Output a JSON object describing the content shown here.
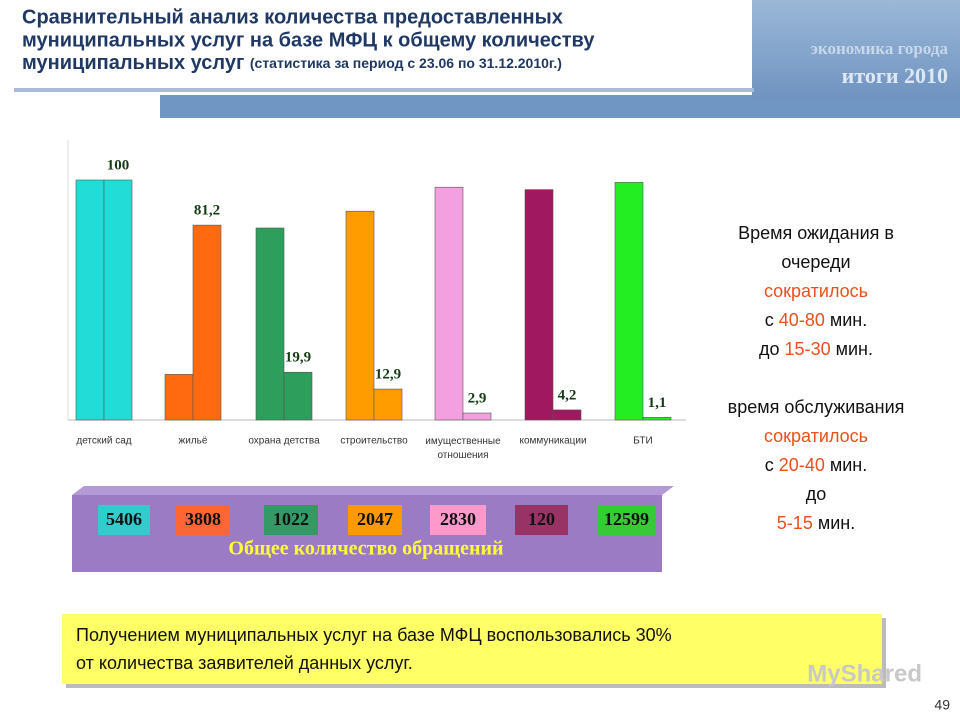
{
  "header": {
    "title": [
      "Сравнительный анализ количества предоставленных",
      "муниципальных услуг на базе МФЦ к общему количеству",
      "муниципальных услуг"
    ],
    "subtitle": "(статистика за период с 23.06 по 31.12.2010г.)",
    "logo": [
      "экономика города",
      "итоги 2010"
    ]
  },
  "chart_data": {
    "type": "bar",
    "categories": [
      "детский сад",
      "жильё",
      "охрана детства",
      "строительство",
      "имущественные отношения",
      "коммуникации",
      "БТИ"
    ],
    "colors": [
      "#22dcd8",
      "#ff6a10",
      "#2e9e5c",
      "#ff9c00",
      "#f4a0e0",
      "#a01860",
      "#22ee22"
    ],
    "series": [
      {
        "values": [
          100,
          19,
          80,
          87,
          97,
          96,
          99
        ]
      },
      {
        "values": [
          100,
          81.2,
          19.9,
          12.9,
          2.9,
          4.2,
          1.1
        ],
        "value_labels": [
          "100",
          "81,2",
          "19,9",
          "12,9",
          "2,9",
          "4,2",
          "1,1"
        ]
      }
    ],
    "ylim": [
      0,
      100
    ]
  },
  "totals": {
    "label": "Общее количество обращений",
    "values": [
      5406,
      3808,
      1022,
      2047,
      2830,
      120,
      12599
    ],
    "colors": [
      "#33cccc",
      "#ff6633",
      "#339966",
      "#ff9900",
      "#ff99cc",
      "#993366",
      "#33cc33"
    ]
  },
  "notes": [
    [
      {
        "text": "Время ожидания в"
      }
    ],
    [
      {
        "text": "очереди"
      }
    ],
    [
      {
        "text": "сократилось",
        "highlight": true
      }
    ],
    [
      {
        "text": " с "
      },
      {
        "text": "40-80",
        "highlight": true
      },
      {
        "text": " мин."
      }
    ],
    [
      {
        "text": "до "
      },
      {
        "text": "15-30",
        "highlight": true
      },
      {
        "text": " мин."
      }
    ],
    [],
    [
      {
        "text": "время обслуживания"
      }
    ],
    [
      {
        "text": "сократилось",
        "highlight": true
      }
    ],
    [
      {
        "text": "с "
      },
      {
        "text": "20-40",
        "highlight": true
      },
      {
        "text": " мин."
      }
    ],
    [
      {
        "text": "до"
      }
    ],
    [
      {
        "text": "5-15",
        "highlight": true
      },
      {
        "text": " мин."
      }
    ]
  ],
  "footer": {
    "text": [
      "Получением муниципальных услуг на базе МФЦ воспользовались 30%",
      "от количества заявителей данных услуг."
    ],
    "watermark": "MyShared",
    "page": "49"
  }
}
